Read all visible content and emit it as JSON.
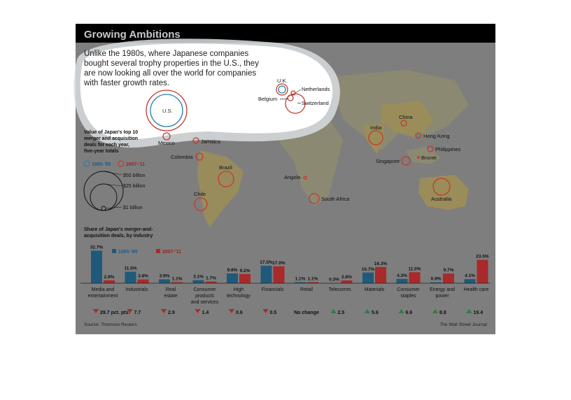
{
  "header": {
    "title": "Growing Ambitions",
    "intro_lines": [
      "Unlike the 1980s, where Japanese companies",
      "bought several trophy properties in the U.S., they",
      "are now looking all over the world for companies",
      "with faster growth rates."
    ]
  },
  "colors": {
    "frame_bg": "#7e7e7e",
    "title_bar": "#000000",
    "highlight": "#ffffff",
    "series_1985": "#1f5a7a",
    "series_2007": "#a82a2a",
    "up_arrow": "#2f7a4a",
    "down_arrow": "#a82a2a"
  },
  "map": {
    "legend": {
      "title_lines": [
        "Value of Japan's top 10",
        "merger and acquisition",
        "deals for each year,",
        "five-year totals"
      ],
      "series": [
        "1985-'89",
        "2007-'11"
      ],
      "size_labels": [
        "$50 billion",
        "$25 billion",
        "$1 billion"
      ]
    },
    "places": [
      {
        "name": "U.S.",
        "shape": "double",
        "emphasis": true
      },
      {
        "name": "U.K.",
        "shape": "double"
      },
      {
        "name": "Netherlands",
        "shape": "red"
      },
      {
        "name": "Belgium",
        "shape": "red"
      },
      {
        "name": "Switzerland",
        "shape": "red"
      },
      {
        "name": "Mexico",
        "shape": "red"
      },
      {
        "name": "Jamaica",
        "shape": "red"
      },
      {
        "name": "Colombia",
        "shape": "red"
      },
      {
        "name": "Brazil",
        "shape": "red"
      },
      {
        "name": "Chile",
        "shape": "red"
      },
      {
        "name": "Angola",
        "shape": "red"
      },
      {
        "name": "South Africa",
        "shape": "red"
      },
      {
        "name": "India",
        "shape": "red"
      },
      {
        "name": "China",
        "shape": "red"
      },
      {
        "name": "Hong Kong",
        "shape": "double"
      },
      {
        "name": "Philippines",
        "shape": "red"
      },
      {
        "name": "Singapore",
        "shape": "red"
      },
      {
        "name": "Brunei",
        "shape": "red"
      },
      {
        "name": "Australia",
        "shape": "red"
      }
    ]
  },
  "chart_data": {
    "type": "bar",
    "title_lines": [
      "Share of Japan's merger-and-",
      "acquisition deals, by industry"
    ],
    "legend": [
      "1985-'89",
      "2007-'11"
    ],
    "categories": [
      [
        "Media and",
        "entertainment"
      ],
      [
        "Industrials"
      ],
      [
        "Real",
        "estate"
      ],
      [
        "Consumer",
        "products",
        "and services"
      ],
      [
        "High",
        "technology"
      ],
      [
        "Financials"
      ],
      [
        "Retail"
      ],
      [
        "Telecomm."
      ],
      [
        "Materials"
      ],
      [
        "Consumer",
        "staples"
      ],
      [
        "Energy and",
        "power"
      ],
      [
        "Health care"
      ]
    ],
    "series": [
      {
        "name": "1985-'89",
        "values": [
          32.7,
          11.5,
          3.9,
          3.1,
          9.8,
          17.5,
          1.1,
          0.3,
          10.7,
          4.3,
          0.9,
          4.1
        ]
      },
      {
        "name": "2007-'11",
        "values": [
          2.9,
          3.8,
          1.1,
          1.7,
          9.2,
          17.0,
          1.1,
          2.8,
          16.3,
          11.0,
          9.7,
          23.5
        ]
      }
    ],
    "value_labels": {
      "1985-'89": [
        "32.7%",
        "11.5%",
        "3.9%",
        "3.1%",
        "9.8%",
        "17.5%",
        "1.1%",
        "0.3%",
        "10.7%",
        "4.3%",
        "0.9%",
        "4.1%"
      ],
      "2007-'11": [
        "2.9%",
        "3.8%",
        "1.1%",
        "1.7%",
        "9.2%",
        "17.0%",
        "1.1%",
        "2.8%",
        "16.3%",
        "11.0%",
        "9.7%",
        "23.5%"
      ]
    },
    "changes": [
      {
        "dir": "down",
        "label": "29.7 pct. pts."
      },
      {
        "dir": "down",
        "label": "7.7"
      },
      {
        "dir": "down",
        "label": "2.9"
      },
      {
        "dir": "down",
        "label": "1.4"
      },
      {
        "dir": "down",
        "label": "0.6"
      },
      {
        "dir": "down",
        "label": "0.5"
      },
      {
        "dir": "none",
        "label": "No change"
      },
      {
        "dir": "up",
        "label": "2.5"
      },
      {
        "dir": "up",
        "label": "5.6"
      },
      {
        "dir": "up",
        "label": "6.6"
      },
      {
        "dir": "up",
        "label": "8.8"
      },
      {
        "dir": "up",
        "label": "19.4"
      }
    ],
    "ylim": [
      0,
      33
    ]
  },
  "footer": {
    "source": "Source: Thomson Reuters",
    "credit": "The Wall Street Journal"
  }
}
